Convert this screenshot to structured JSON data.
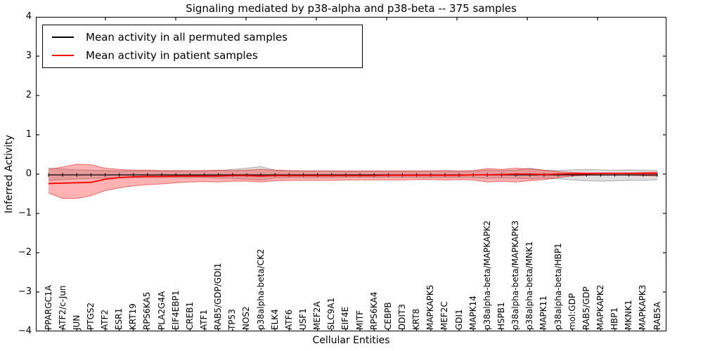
{
  "title": "Signaling mediated by p38-alpha and p38-beta -- 375 samples",
  "axes": {
    "xlabel": "Cellular Entities",
    "ylabel": "Inferred Activity",
    "ytick_labels": [
      "4",
      "3",
      "2",
      "1",
      "0",
      "−1",
      "−2",
      "−3",
      "−4"
    ]
  },
  "legend": {
    "items": [
      {
        "label": "Mean activity in all permuted samples",
        "color": "#000000"
      },
      {
        "label": "Mean activity in patient samples",
        "color": "#ff0000"
      }
    ]
  },
  "chart_data": {
    "type": "line",
    "title": "Signaling mediated by p38-alpha and p38-beta -- 375 samples",
    "xlabel": "Cellular Entities",
    "ylabel": "Inferred Activity",
    "ylim": [
      -4,
      4
    ],
    "yticks": [
      4,
      3,
      2,
      1,
      0,
      -1,
      -2,
      -3,
      -4
    ],
    "grid": false,
    "legend_position": "upper left",
    "categories": [
      "PPARGC1A",
      "ATF2/c-Jun",
      "JUN",
      "PTGS2",
      "ATF2",
      "ESR1",
      "KRT19",
      "RPS6KA5",
      "PLA2G4A",
      "EIF4EBP1",
      "CREB1",
      "ATF1",
      "RAB5/GDP/GDI1",
      "TP53",
      "NOS2",
      "p38alpha-beta/CK2",
      "ELK4",
      "ATF6",
      "USF1",
      "MEF2A",
      "SLC9A1",
      "EIF4E",
      "MITF",
      "RPS6KA4",
      "CEBPB",
      "DDIT3",
      "KRT8",
      "MAPKAPK5",
      "MEF2C",
      "GDI1",
      "MAPK14",
      "p38alpha-beta/MAPKAPK2",
      "HSPB1",
      "p38alpha-beta/MAPKAPK3",
      "p38alpha-beta/MNK1",
      "MAPK11",
      "p38alpha-beta/HBP1",
      "mol:GDP",
      "RAB5/GDP",
      "MAPKAPK2",
      "HBP1",
      "MKNK1",
      "MAPKAPK3",
      "RAB5A"
    ],
    "series": [
      {
        "name": "Mean activity in all permuted samples",
        "color": "#000000",
        "marker": "|",
        "line_width": 1.2,
        "values": [
          -0.02,
          -0.02,
          -0.02,
          -0.02,
          -0.02,
          -0.02,
          -0.02,
          -0.02,
          -0.02,
          -0.02,
          -0.02,
          -0.02,
          -0.02,
          -0.02,
          -0.02,
          -0.02,
          -0.02,
          -0.02,
          -0.02,
          -0.02,
          -0.02,
          -0.02,
          -0.02,
          -0.02,
          -0.02,
          -0.02,
          -0.02,
          -0.02,
          -0.02,
          -0.02,
          -0.02,
          -0.02,
          -0.02,
          -0.02,
          -0.02,
          -0.02,
          -0.02,
          -0.02,
          -0.02,
          -0.02,
          -0.02,
          -0.02,
          -0.02,
          -0.02
        ]
      },
      {
        "name": "Mean activity in patient samples",
        "color": "#ff0000",
        "marker": "none",
        "line_width": 1.8,
        "values": [
          -0.24,
          -0.23,
          -0.22,
          -0.21,
          -0.13,
          -0.09,
          -0.07,
          -0.06,
          -0.06,
          -0.05,
          -0.05,
          -0.05,
          -0.05,
          -0.04,
          -0.04,
          -0.05,
          -0.04,
          -0.04,
          -0.04,
          -0.04,
          -0.04,
          -0.04,
          -0.04,
          -0.04,
          -0.03,
          -0.03,
          -0.03,
          -0.03,
          -0.03,
          -0.03,
          -0.02,
          -0.02,
          -0.01,
          0.0,
          0.0,
          -0.01,
          0.0,
          0.01,
          0.01,
          0.02,
          0.02,
          0.02,
          0.02,
          0.02
        ]
      }
    ],
    "bands": [
      {
        "name": "permuted samples range",
        "fill": "rgba(150,150,150,0.32)",
        "edge": "rgba(120,120,120,0.55)",
        "upper": [
          0.15,
          0.13,
          0.11,
          0.1,
          0.09,
          0.08,
          0.08,
          0.08,
          0.08,
          0.08,
          0.08,
          0.08,
          0.09,
          0.12,
          0.15,
          0.19,
          0.1,
          0.08,
          0.08,
          0.08,
          0.08,
          0.07,
          0.07,
          0.07,
          0.07,
          0.07,
          0.07,
          0.08,
          0.08,
          0.07,
          0.08,
          0.1,
          0.09,
          0.1,
          0.15,
          0.1,
          0.09,
          0.11,
          0.12,
          0.11,
          0.1,
          0.11,
          0.1,
          0.09
        ],
        "lower": [
          -0.16,
          -0.14,
          -0.12,
          -0.11,
          -0.1,
          -0.09,
          -0.09,
          -0.09,
          -0.09,
          -0.09,
          -0.09,
          -0.09,
          -0.1,
          -0.11,
          -0.13,
          -0.15,
          -0.1,
          -0.09,
          -0.09,
          -0.09,
          -0.09,
          -0.08,
          -0.08,
          -0.08,
          -0.08,
          -0.08,
          -0.08,
          -0.09,
          -0.09,
          -0.08,
          -0.09,
          -0.11,
          -0.1,
          -0.11,
          -0.12,
          -0.1,
          -0.12,
          -0.15,
          -0.17,
          -0.18,
          -0.17,
          -0.16,
          -0.16,
          -0.14
        ]
      },
      {
        "name": "patient samples range",
        "fill": "rgba(255,0,0,0.30)",
        "edge": "rgba(220,0,0,0.50)",
        "upper": [
          0.12,
          0.18,
          0.25,
          0.24,
          0.15,
          0.12,
          0.1,
          0.1,
          0.09,
          0.09,
          0.09,
          0.09,
          0.1,
          0.09,
          0.1,
          0.12,
          0.1,
          0.09,
          0.08,
          0.08,
          0.08,
          0.08,
          0.08,
          0.08,
          0.08,
          0.08,
          0.08,
          0.08,
          0.09,
          0.08,
          0.09,
          0.14,
          0.12,
          0.15,
          0.13,
          0.1,
          0.06,
          0.04,
          0.03,
          0.03,
          0.03,
          0.03,
          0.04,
          0.05
        ],
        "lower": [
          -0.48,
          -0.62,
          -0.62,
          -0.55,
          -0.42,
          -0.35,
          -0.3,
          -0.27,
          -0.25,
          -0.22,
          -0.2,
          -0.19,
          -0.2,
          -0.18,
          -0.18,
          -0.2,
          -0.17,
          -0.16,
          -0.16,
          -0.16,
          -0.16,
          -0.15,
          -0.15,
          -0.15,
          -0.15,
          -0.15,
          -0.14,
          -0.14,
          -0.15,
          -0.14,
          -0.15,
          -0.2,
          -0.18,
          -0.2,
          -0.17,
          -0.14,
          -0.09,
          -0.05,
          -0.03,
          -0.03,
          -0.03,
          -0.03,
          -0.04,
          -0.05
        ]
      }
    ]
  }
}
